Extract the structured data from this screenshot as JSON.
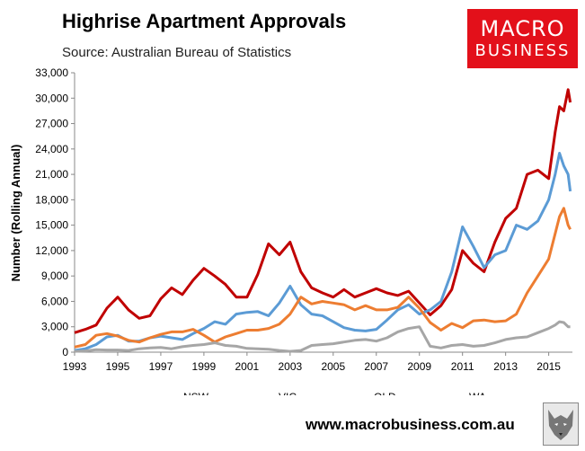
{
  "header": {
    "title": "Highrise Apartment Approvals",
    "subtitle": "Source: Australian Bureau of Statistics"
  },
  "logo": {
    "line1": "MACRO",
    "line2": "BUSINESS",
    "bg": "#e3101a"
  },
  "footer": {
    "url": "www.macrobusiness.com.au"
  },
  "icons": {
    "brand_mark": "wolf-icon"
  },
  "chart_data": {
    "type": "line",
    "ylabel": "Number (Rolling Annual)",
    "xlabel": "",
    "xlim": [
      1993.0,
      2016.1
    ],
    "ylim": [
      0,
      33000
    ],
    "y_ticks": [
      0,
      3000,
      6000,
      9000,
      12000,
      15000,
      18000,
      21000,
      24000,
      27000,
      30000,
      33000
    ],
    "x_ticks": [
      "1993",
      "1995",
      "1997",
      "1999",
      "2001",
      "2003",
      "2005",
      "2007",
      "2009",
      "2011",
      "2013",
      "2015"
    ],
    "grid": false,
    "legend_position": "bottom",
    "x": [
      1993.0,
      1993.5,
      1994.0,
      1994.5,
      1995.0,
      1995.5,
      1996.0,
      1996.5,
      1997.0,
      1997.5,
      1998.0,
      1998.5,
      1999.0,
      1999.5,
      2000.0,
      2000.5,
      2001.0,
      2001.5,
      2002.0,
      2002.5,
      2003.0,
      2003.5,
      2004.0,
      2004.5,
      2005.0,
      2005.5,
      2006.0,
      2006.5,
      2007.0,
      2007.5,
      2008.0,
      2008.5,
      2009.0,
      2009.5,
      2010.0,
      2010.5,
      2011.0,
      2011.5,
      2012.0,
      2012.5,
      2013.0,
      2013.5,
      2014.0,
      2014.5,
      2015.0,
      2015.3,
      2015.5,
      2015.7,
      2015.9,
      2016.0
    ],
    "series": [
      {
        "name": "NSW",
        "color": "#c00000",
        "values": [
          2300,
          2700,
          3200,
          5200,
          6500,
          5000,
          4000,
          4300,
          6300,
          7600,
          6800,
          8500,
          9900,
          9000,
          8000,
          6500,
          6500,
          9200,
          12800,
          11500,
          13000,
          9500,
          7600,
          7000,
          6500,
          7400,
          6500,
          7000,
          7500,
          7000,
          6700,
          7200,
          5800,
          4400,
          5500,
          7400,
          12000,
          10500,
          9500,
          13000,
          15800,
          17000,
          21000,
          21500,
          20500,
          26000,
          29000,
          28500,
          31000,
          29500
        ]
      },
      {
        "name": "VIC",
        "color": "#5b9bd5",
        "values": [
          200,
          400,
          900,
          1800,
          2000,
          1300,
          1300,
          1700,
          1900,
          1700,
          1500,
          2200,
          2800,
          3600,
          3300,
          4500,
          4700,
          4800,
          4300,
          5800,
          7800,
          5600,
          4500,
          4300,
          3600,
          2900,
          2600,
          2500,
          2700,
          3800,
          5000,
          5600,
          4500,
          5000,
          6000,
          9500,
          14800,
          12500,
          10000,
          11500,
          12000,
          15000,
          14500,
          15500,
          18000,
          21000,
          23500,
          22000,
          21000,
          19000
        ]
      },
      {
        "name": "QLD",
        "color": "#ed7d31",
        "values": [
          600,
          900,
          2000,
          2200,
          1900,
          1400,
          1200,
          1700,
          2100,
          2400,
          2400,
          2700,
          2000,
          1200,
          1800,
          2200,
          2600,
          2600,
          2800,
          3300,
          4500,
          6500,
          5700,
          6000,
          5800,
          5600,
          5000,
          5500,
          5000,
          5000,
          5300,
          6500,
          5200,
          3500,
          2600,
          3400,
          2900,
          3700,
          3800,
          3600,
          3700,
          4500,
          7000,
          9000,
          11000,
          14000,
          16000,
          17000,
          15000,
          14500
        ]
      },
      {
        "name": "WA",
        "color": "#a6a6a6",
        "values": [
          100,
          150,
          300,
          250,
          250,
          200,
          400,
          500,
          550,
          400,
          650,
          800,
          900,
          1100,
          800,
          700,
          450,
          400,
          350,
          200,
          100,
          200,
          800,
          900,
          1000,
          1200,
          1400,
          1500,
          1300,
          1700,
          2400,
          2800,
          3000,
          700,
          500,
          800,
          900,
          700,
          800,
          1100,
          1500,
          1700,
          1800,
          2300,
          2800,
          3200,
          3600,
          3500,
          3000,
          3000
        ]
      }
    ]
  }
}
